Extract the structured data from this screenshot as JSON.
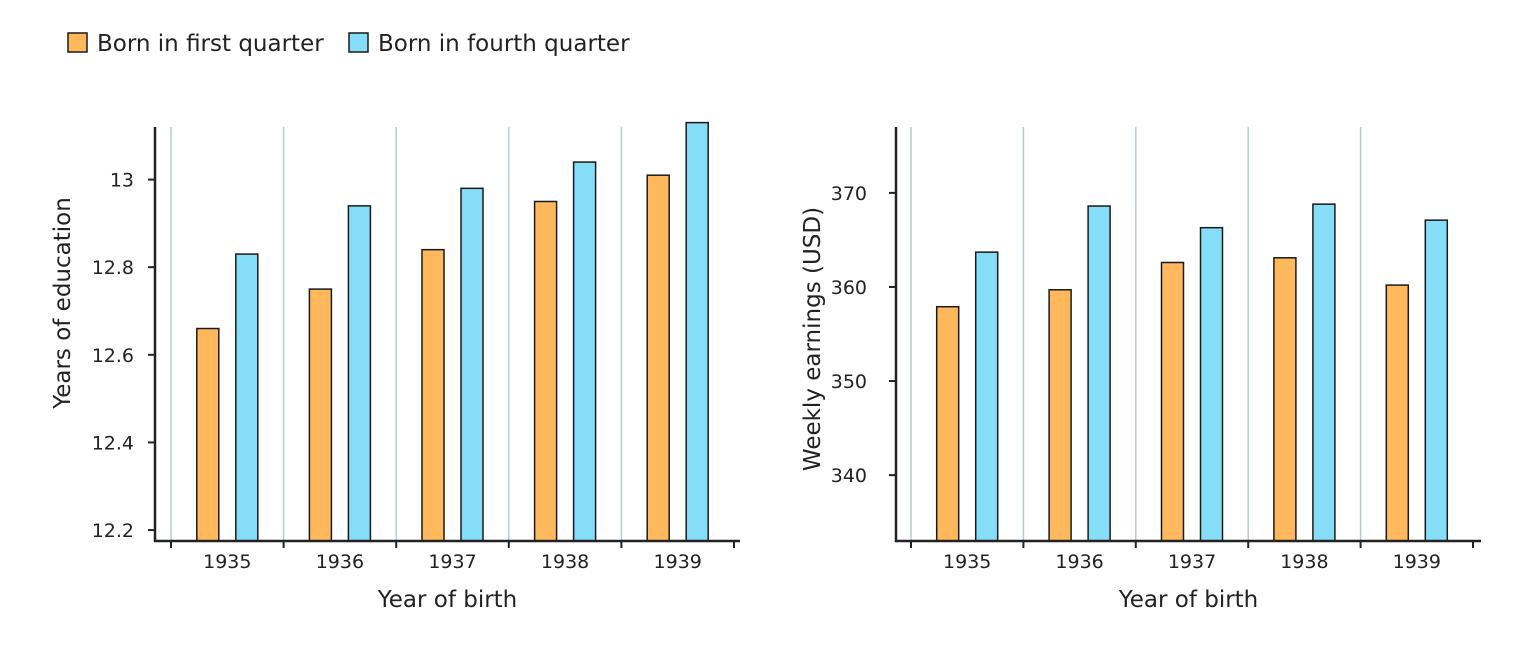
{
  "legend": {
    "items": [
      {
        "label": "Born in first quarter",
        "color": "#FFB85C"
      },
      {
        "label": "Born in fourth quarter",
        "color": "#85DDF7"
      }
    ]
  },
  "colors": {
    "axis": "#222222",
    "gridline": "#B8C9D6",
    "bar_stroke": "#1a1a1a"
  },
  "chart_data": [
    {
      "type": "bar",
      "title": "",
      "xlabel": "Year of birth",
      "ylabel": "Years of education",
      "categories": [
        "1935",
        "1936",
        "1937",
        "1938",
        "1939"
      ],
      "series": [
        {
          "name": "Born in first quarter",
          "values": [
            12.66,
            12.75,
            12.84,
            12.95,
            13.01
          ]
        },
        {
          "name": "Born in fourth quarter",
          "values": [
            12.83,
            12.94,
            12.98,
            13.04,
            13.13
          ]
        }
      ],
      "ylim": [
        12.175,
        13.12
      ],
      "yticks": [
        "12.2",
        "12.4",
        "12.6",
        "12.8",
        "13"
      ],
      "ytick_values": [
        12.2,
        12.4,
        12.6,
        12.8,
        13.0
      ],
      "grid": "vertical separators between categories"
    },
    {
      "type": "bar",
      "title": "",
      "xlabel": "Year of birth",
      "ylabel": "Weekly earnings (USD)",
      "categories": [
        "1935",
        "1936",
        "1937",
        "1938",
        "1939"
      ],
      "series": [
        {
          "name": "Born in first quarter",
          "values": [
            357.9,
            359.7,
            362.6,
            363.1,
            360.2
          ]
        },
        {
          "name": "Born in fourth quarter",
          "values": [
            363.7,
            368.6,
            366.3,
            368.8,
            367.1
          ]
        }
      ],
      "ylim": [
        333.0,
        377.0
      ],
      "yticks": [
        "340",
        "350",
        "360",
        "370"
      ],
      "ytick_values": [
        340,
        350,
        360,
        370
      ],
      "grid": "vertical separators between categories"
    }
  ]
}
